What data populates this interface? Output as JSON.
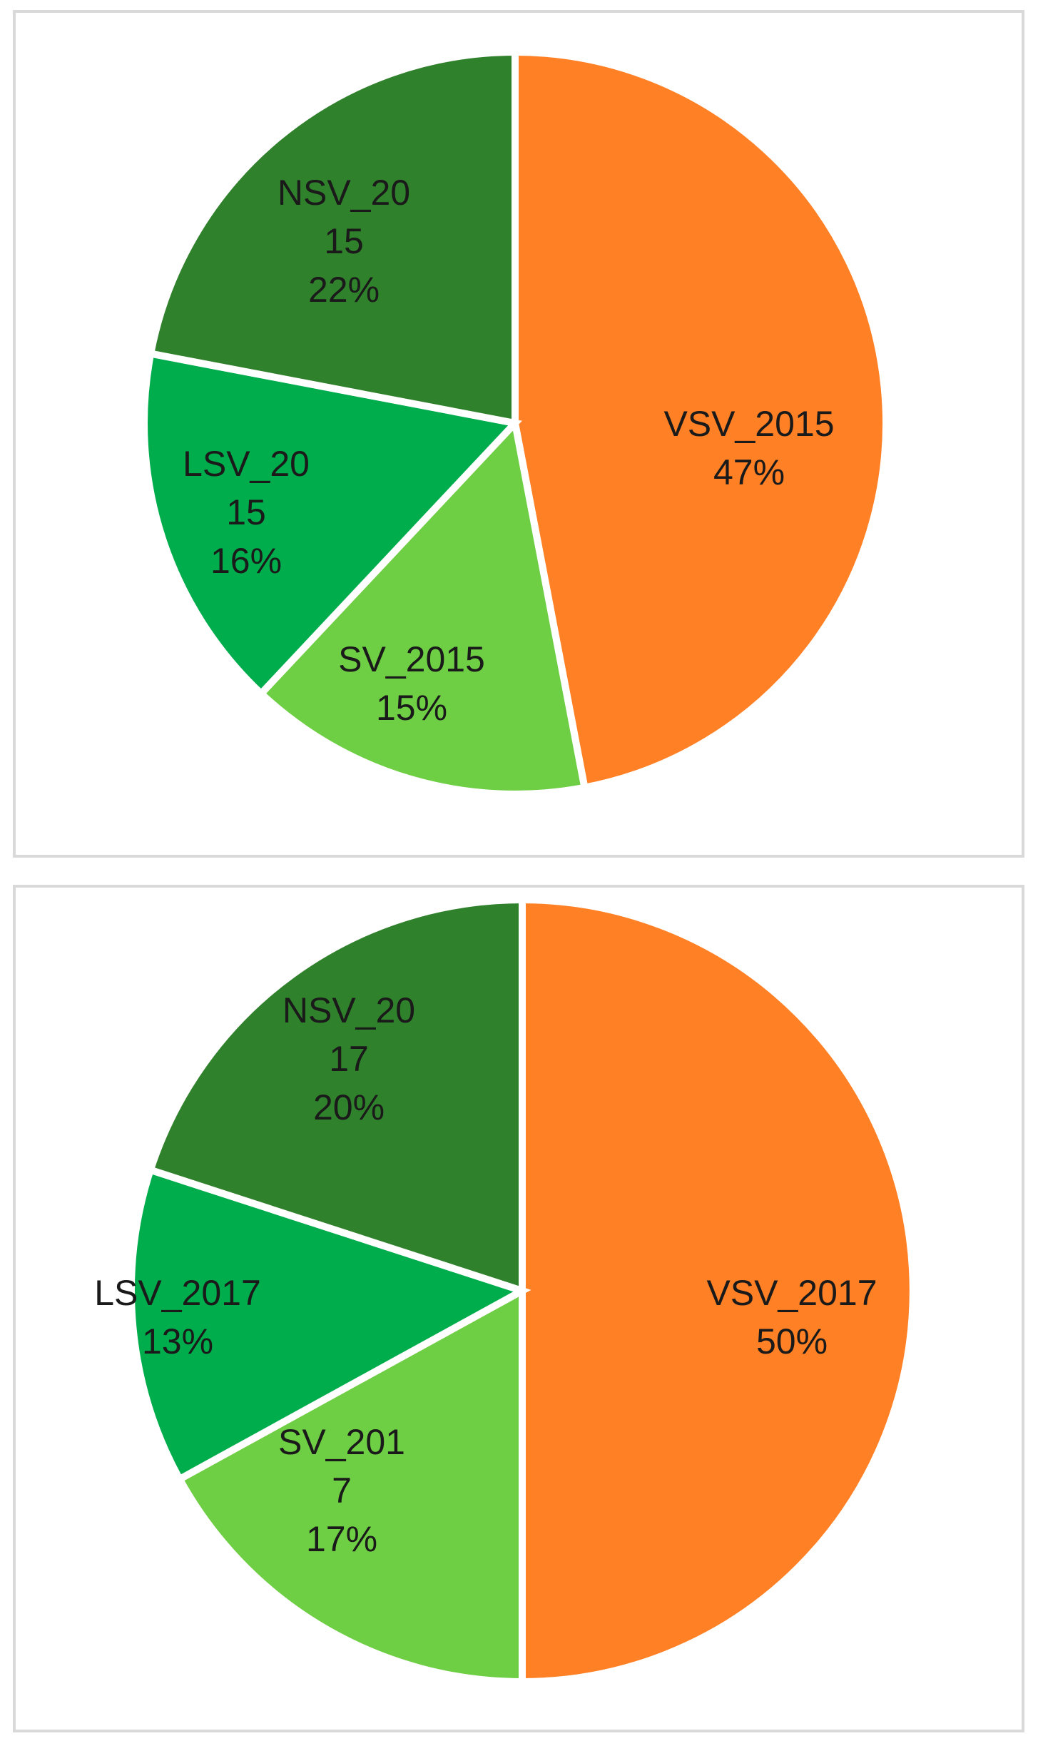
{
  "chart_data": [
    {
      "type": "pie",
      "title": "",
      "slices": [
        {
          "name": "VSV_2015",
          "value": 47,
          "label_lines": [
            "VSV_2015",
            "47%"
          ],
          "color": "#FF8025"
        },
        {
          "name": "SV_2015",
          "value": 15,
          "label_lines": [
            "SV_2015",
            "15%"
          ],
          "color": "#6FCF44"
        },
        {
          "name": "LSV_2015",
          "value": 16,
          "label_lines": [
            "LSV_20",
            "15",
            "16%"
          ],
          "color": "#00AD4C"
        },
        {
          "name": "NSV_2015",
          "value": 22,
          "label_lines": [
            "NSV_20",
            "15",
            "22%"
          ],
          "color": "#30812C"
        }
      ]
    },
    {
      "type": "pie",
      "title": "",
      "slices": [
        {
          "name": "VSV_2017",
          "value": 50,
          "label_lines": [
            "VSV_2017",
            "50%"
          ],
          "color": "#FF8025"
        },
        {
          "name": "SV_2017",
          "value": 17,
          "label_lines": [
            "SV_201",
            "7",
            "17%"
          ],
          "color": "#6FCF44"
        },
        {
          "name": "LSV_2017",
          "value": 13,
          "label_lines": [
            "LSV_2017",
            "13%"
          ],
          "color": "#00AD4C"
        },
        {
          "name": "NSV_2017",
          "value": 20,
          "label_lines": [
            "NSV_20",
            "17",
            "20%"
          ],
          "color": "#30812C"
        }
      ]
    }
  ]
}
